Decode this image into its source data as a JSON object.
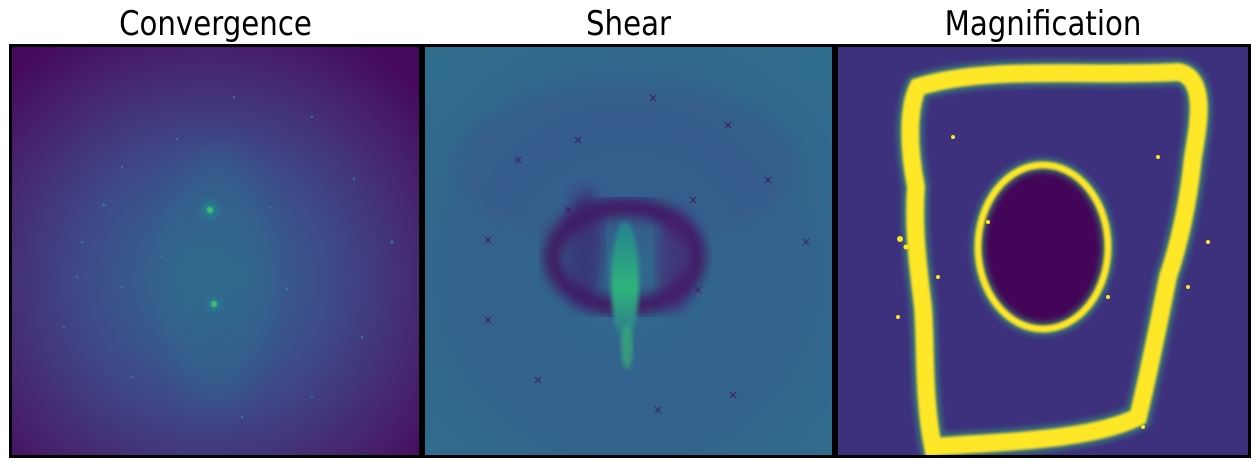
{
  "panels": [
    {
      "title": "Convergence",
      "colormap": "viridis"
    },
    {
      "title": "Shear",
      "colormap": "viridis"
    },
    {
      "title": "Magnification",
      "colormap": "viridis"
    }
  ],
  "colors": {
    "viridis_dark": "#440154",
    "viridis_purple": "#3b2a7a",
    "viridis_blue": "#30678d",
    "viridis_teal": "#21918c",
    "viridis_green": "#35b779",
    "viridis_yellow": "#fde725"
  }
}
